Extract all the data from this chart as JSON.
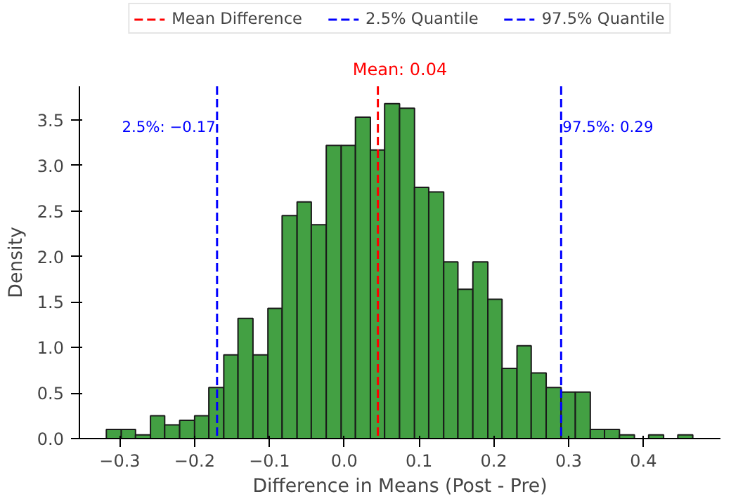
{
  "chart_data": {
    "type": "histogram",
    "xlabel": "Difference in Means (Post - Pre)",
    "ylabel": "Density",
    "bins": [
      -0.318,
      -0.298,
      -0.279,
      -0.259,
      -0.24,
      -0.22,
      -0.2,
      -0.181,
      -0.161,
      -0.142,
      -0.122,
      -0.102,
      -0.083,
      -0.063,
      -0.044,
      -0.024,
      -0.004,
      0.015,
      0.035,
      0.054,
      0.074,
      0.094,
      0.113,
      0.133,
      0.152,
      0.172,
      0.192,
      0.211,
      0.231,
      0.25,
      0.27,
      0.29,
      0.309,
      0.329,
      0.348,
      0.368,
      0.388,
      0.407,
      0.427,
      0.446,
      0.466
    ],
    "values": [
      0.1,
      0.1,
      0.04,
      0.25,
      0.15,
      0.2,
      0.25,
      0.56,
      0.92,
      1.32,
      0.92,
      1.43,
      2.45,
      2.6,
      2.35,
      3.22,
      3.22,
      3.53,
      3.17,
      3.68,
      3.63,
      2.76,
      2.71,
      1.94,
      1.64,
      1.94,
      1.53,
      0.77,
      1.02,
      0.72,
      0.56,
      0.51,
      0.51,
      0.1,
      0.1,
      0.04,
      0,
      0.04,
      0,
      0.04
    ],
    "color": "#43a043",
    "xlim": [
      -0.354,
      0.503
    ],
    "ylim": [
      0,
      3.87
    ],
    "xticks": [
      {
        "value": -0.3,
        "label": "−0.3"
      },
      {
        "value": -0.2,
        "label": "−0.2"
      },
      {
        "value": -0.1,
        "label": "−0.1"
      },
      {
        "value": 0,
        "label": "0.0"
      },
      0.1,
      0.2,
      0.3,
      0.4
    ],
    "yticks": [
      {
        "value": 0,
        "label": "0.0"
      },
      0.5,
      {
        "value": 1,
        "label": "1.0"
      },
      1.5,
      {
        "value": 2,
        "label": "2.0"
      },
      2.5,
      {
        "value": 3,
        "label": "3.0"
      },
      3.5
    ],
    "ref_lines": [
      {
        "axis": "x",
        "value": 0.045,
        "label": "Mean Difference",
        "color": "#ff0000",
        "line_style": "dashed"
      },
      {
        "axis": "x",
        "value": -0.17,
        "label": "2.5% Quantile",
        "color": "#0000ff",
        "line_style": "dashed"
      },
      {
        "axis": "x",
        "value": 0.29,
        "label": "97.5% Quantile",
        "color": "#0000ff",
        "line_style": "dashed"
      }
    ],
    "annotations": [
      "Mean: 0.04",
      {
        "text": "2.5%: −0.17",
        "x": -0.17,
        "y": 3.42
      },
      {
        "text": "97.5%: 0.29",
        "x": 0.29,
        "y": 3.42
      }
    ],
    "legend": "top",
    "grid": false
  }
}
